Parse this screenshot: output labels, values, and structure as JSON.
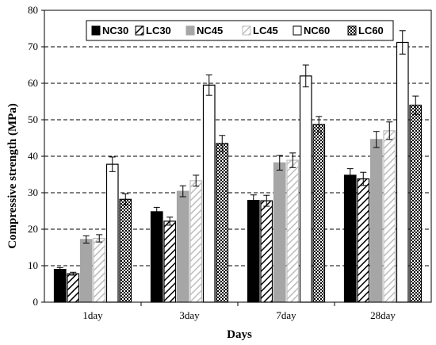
{
  "chart_data": {
    "type": "bar",
    "title": "",
    "xlabel": "Days",
    "ylabel": "Compressive strength (MPa)",
    "ylim": [
      0,
      80
    ],
    "yticks": [
      0,
      10,
      20,
      30,
      40,
      50,
      60,
      70,
      80
    ],
    "grid": "horizontal dashed",
    "legend_position": "top",
    "categories": [
      "1day",
      "3day",
      "7day",
      "28day"
    ],
    "series": [
      {
        "name": "NC30",
        "fill": "solid",
        "color": "#000000",
        "values": [
          9.0,
          24.8,
          27.9,
          34.8
        ],
        "errors": [
          0.5,
          1.2,
          1.5,
          1.8
        ]
      },
      {
        "name": "LC30",
        "fill": "hatched",
        "color": "#000000",
        "values": [
          7.8,
          22.2,
          27.8,
          33.8
        ],
        "errors": [
          0.4,
          1.1,
          1.5,
          1.8
        ]
      },
      {
        "name": "NC45",
        "fill": "solid",
        "color": "#a6a6a6",
        "values": [
          17.2,
          30.4,
          38.2,
          44.6
        ],
        "errors": [
          1.0,
          1.5,
          2.0,
          2.2
        ]
      },
      {
        "name": "LC45",
        "fill": "hatched",
        "color": "#b3b3b3",
        "values": [
          17.5,
          33.3,
          38.9,
          47.0
        ],
        "errors": [
          1.0,
          1.5,
          2.0,
          2.4
        ]
      },
      {
        "name": "NC60",
        "fill": "open",
        "color": "#000000",
        "values": [
          37.8,
          59.5,
          62.0,
          71.2
        ],
        "errors": [
          2.0,
          2.8,
          3.0,
          3.2
        ]
      },
      {
        "name": "LC60",
        "fill": "dotted",
        "color": "#000000",
        "values": [
          28.2,
          43.5,
          48.7,
          54.0
        ],
        "errors": [
          1.5,
          2.2,
          2.2,
          2.5
        ]
      }
    ]
  }
}
